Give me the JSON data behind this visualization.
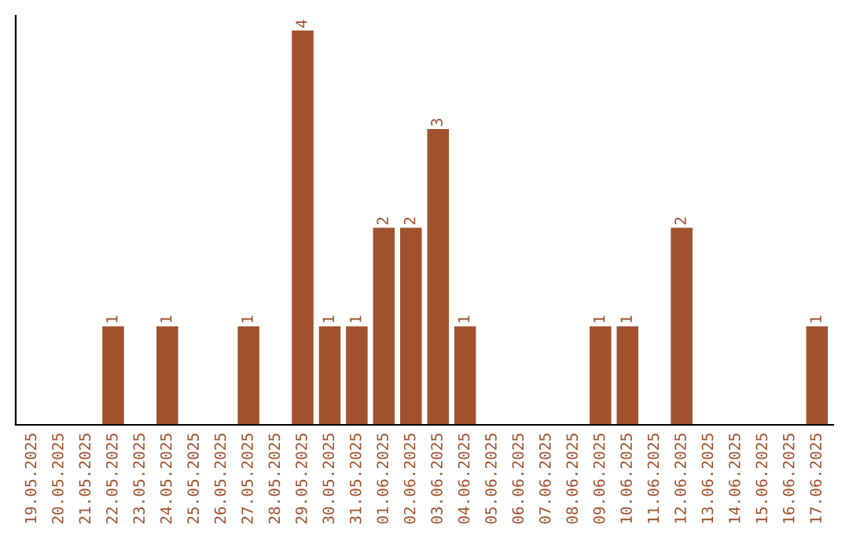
{
  "chart_data": {
    "type": "bar",
    "categories": [
      "19.05.2025",
      "20.05.2025",
      "21.05.2025",
      "22.05.2025",
      "23.05.2025",
      "24.05.2025",
      "25.05.2025",
      "26.05.2025",
      "27.05.2025",
      "28.05.2025",
      "29.05.2025",
      "30.05.2025",
      "31.05.2025",
      "01.06.2025",
      "02.06.2025",
      "03.06.2025",
      "04.06.2025",
      "05.06.2025",
      "06.06.2025",
      "07.06.2025",
      "08.06.2025",
      "09.06.2025",
      "10.06.2025",
      "11.06.2025",
      "12.06.2025",
      "13.06.2025",
      "14.06.2025",
      "15.06.2025",
      "16.06.2025",
      "17.06.2025"
    ],
    "values": [
      0,
      0,
      0,
      1,
      0,
      1,
      0,
      0,
      1,
      0,
      4,
      1,
      1,
      2,
      2,
      3,
      1,
      0,
      0,
      0,
      0,
      1,
      1,
      0,
      2,
      0,
      0,
      0,
      0,
      1
    ],
    "value_labels": [
      null,
      null,
      null,
      "1",
      null,
      "1",
      null,
      null,
      "1",
      null,
      "4",
      "1",
      "1",
      "2",
      "2",
      "3",
      "1",
      null,
      null,
      null,
      null,
      "1",
      "1",
      null,
      "2",
      null,
      null,
      null,
      null,
      "1"
    ],
    "color": "#a0522d",
    "ylim": [
      0,
      4.15
    ],
    "tick_labels": "x",
    "grid": false,
    "legend": false
  }
}
